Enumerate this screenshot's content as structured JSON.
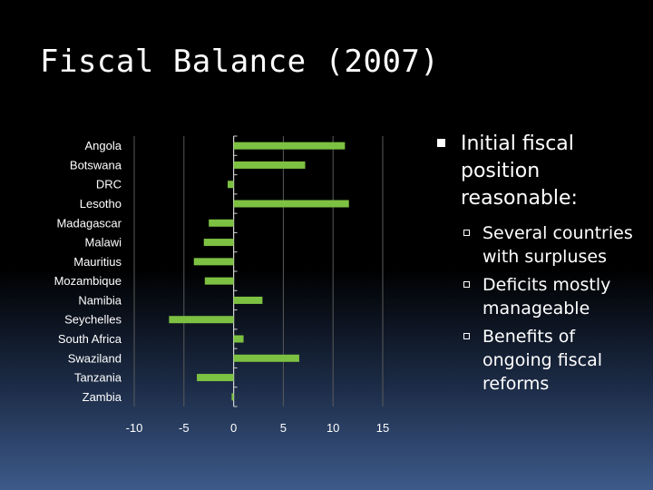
{
  "slide": {
    "title": "Fiscal Balance (2007)",
    "bullet": "Initial fiscal position reasonable:",
    "sub_bullets": [
      "Several countries with surpluses",
      "Deficits mostly manageable",
      "Benefits of ongoing fiscal reforms"
    ]
  },
  "chart_data": {
    "type": "bar",
    "orientation": "horizontal",
    "title": "",
    "xlabel": "",
    "ylabel": "",
    "categories": [
      "Angola",
      "Botswana",
      "DRC",
      "Lesotho",
      "Madagascar",
      "Malawi",
      "Mauritius",
      "Mozambique",
      "Namibia",
      "Seychelles",
      "South Africa",
      "Swaziland",
      "Tanzania",
      "Zambia"
    ],
    "values": [
      11.2,
      7.2,
      -0.6,
      11.6,
      -2.5,
      -3.0,
      -4.0,
      -2.9,
      2.9,
      -6.5,
      1.0,
      6.6,
      -3.7,
      -0.2
    ],
    "xlim": [
      -10,
      15
    ],
    "xticks": [
      "-10",
      "-5",
      "0",
      "5",
      "10",
      "15"
    ],
    "grid": "vertical",
    "bar_color": "#7dc142",
    "axis_color": "#d0d0d0",
    "label_color": "#ffffff"
  }
}
